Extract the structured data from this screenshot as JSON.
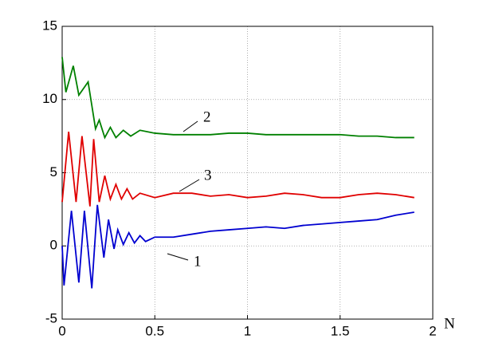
{
  "chart_data": {
    "type": "line",
    "xlabel": "N",
    "xlim": [
      0,
      2
    ],
    "ylim": [
      -5,
      15
    ],
    "xticks": [
      0,
      0.5,
      1,
      1.5,
      2
    ],
    "yticks": [
      -5,
      0,
      5,
      10,
      15
    ],
    "grid": true,
    "series": [
      {
        "name": "2",
        "color": "#008000",
        "x": [
          0,
          0.02,
          0.06,
          0.09,
          0.14,
          0.18,
          0.2,
          0.23,
          0.26,
          0.29,
          0.33,
          0.37,
          0.42,
          0.5,
          0.6,
          0.7,
          0.8,
          0.9,
          1.0,
          1.1,
          1.2,
          1.3,
          1.4,
          1.5,
          1.6,
          1.7,
          1.8,
          1.9
        ],
        "values": [
          12.9,
          10.5,
          12.3,
          10.3,
          11.2,
          8.0,
          8.6,
          7.4,
          8.1,
          7.4,
          7.9,
          7.5,
          7.9,
          7.7,
          7.6,
          7.6,
          7.6,
          7.7,
          7.7,
          7.6,
          7.6,
          7.6,
          7.6,
          7.6,
          7.5,
          7.5,
          7.4,
          7.4
        ]
      },
      {
        "name": "3",
        "color": "#e00000",
        "x": [
          0,
          0.035,
          0.075,
          0.107,
          0.15,
          0.17,
          0.2,
          0.23,
          0.26,
          0.29,
          0.32,
          0.35,
          0.38,
          0.42,
          0.5,
          0.6,
          0.7,
          0.8,
          0.9,
          1.0,
          1.1,
          1.2,
          1.3,
          1.4,
          1.5,
          1.6,
          1.7,
          1.8,
          1.9
        ],
        "values": [
          3.0,
          7.8,
          3.0,
          7.5,
          2.7,
          7.3,
          3.0,
          4.8,
          3.2,
          4.2,
          3.2,
          3.9,
          3.2,
          3.6,
          3.3,
          3.6,
          3.6,
          3.4,
          3.5,
          3.3,
          3.4,
          3.6,
          3.5,
          3.3,
          3.3,
          3.5,
          3.6,
          3.5,
          3.3
        ]
      },
      {
        "name": "1",
        "color": "#0000d0",
        "x": [
          0,
          0.01,
          0.05,
          0.09,
          0.12,
          0.16,
          0.19,
          0.225,
          0.25,
          0.28,
          0.3,
          0.33,
          0.36,
          0.39,
          0.42,
          0.45,
          0.5,
          0.6,
          0.7,
          0.8,
          0.9,
          1.0,
          1.1,
          1.2,
          1.3,
          1.4,
          1.5,
          1.6,
          1.7,
          1.8,
          1.9
        ],
        "values": [
          0,
          -2.7,
          2.4,
          -2.5,
          2.4,
          -2.9,
          2.8,
          -0.8,
          1.8,
          -0.2,
          1.1,
          0.1,
          0.9,
          0.2,
          0.7,
          0.3,
          0.6,
          0.6,
          0.8,
          1.0,
          1.1,
          1.2,
          1.3,
          1.2,
          1.4,
          1.5,
          1.6,
          1.7,
          1.8,
          2.1,
          2.3
        ]
      }
    ]
  }
}
